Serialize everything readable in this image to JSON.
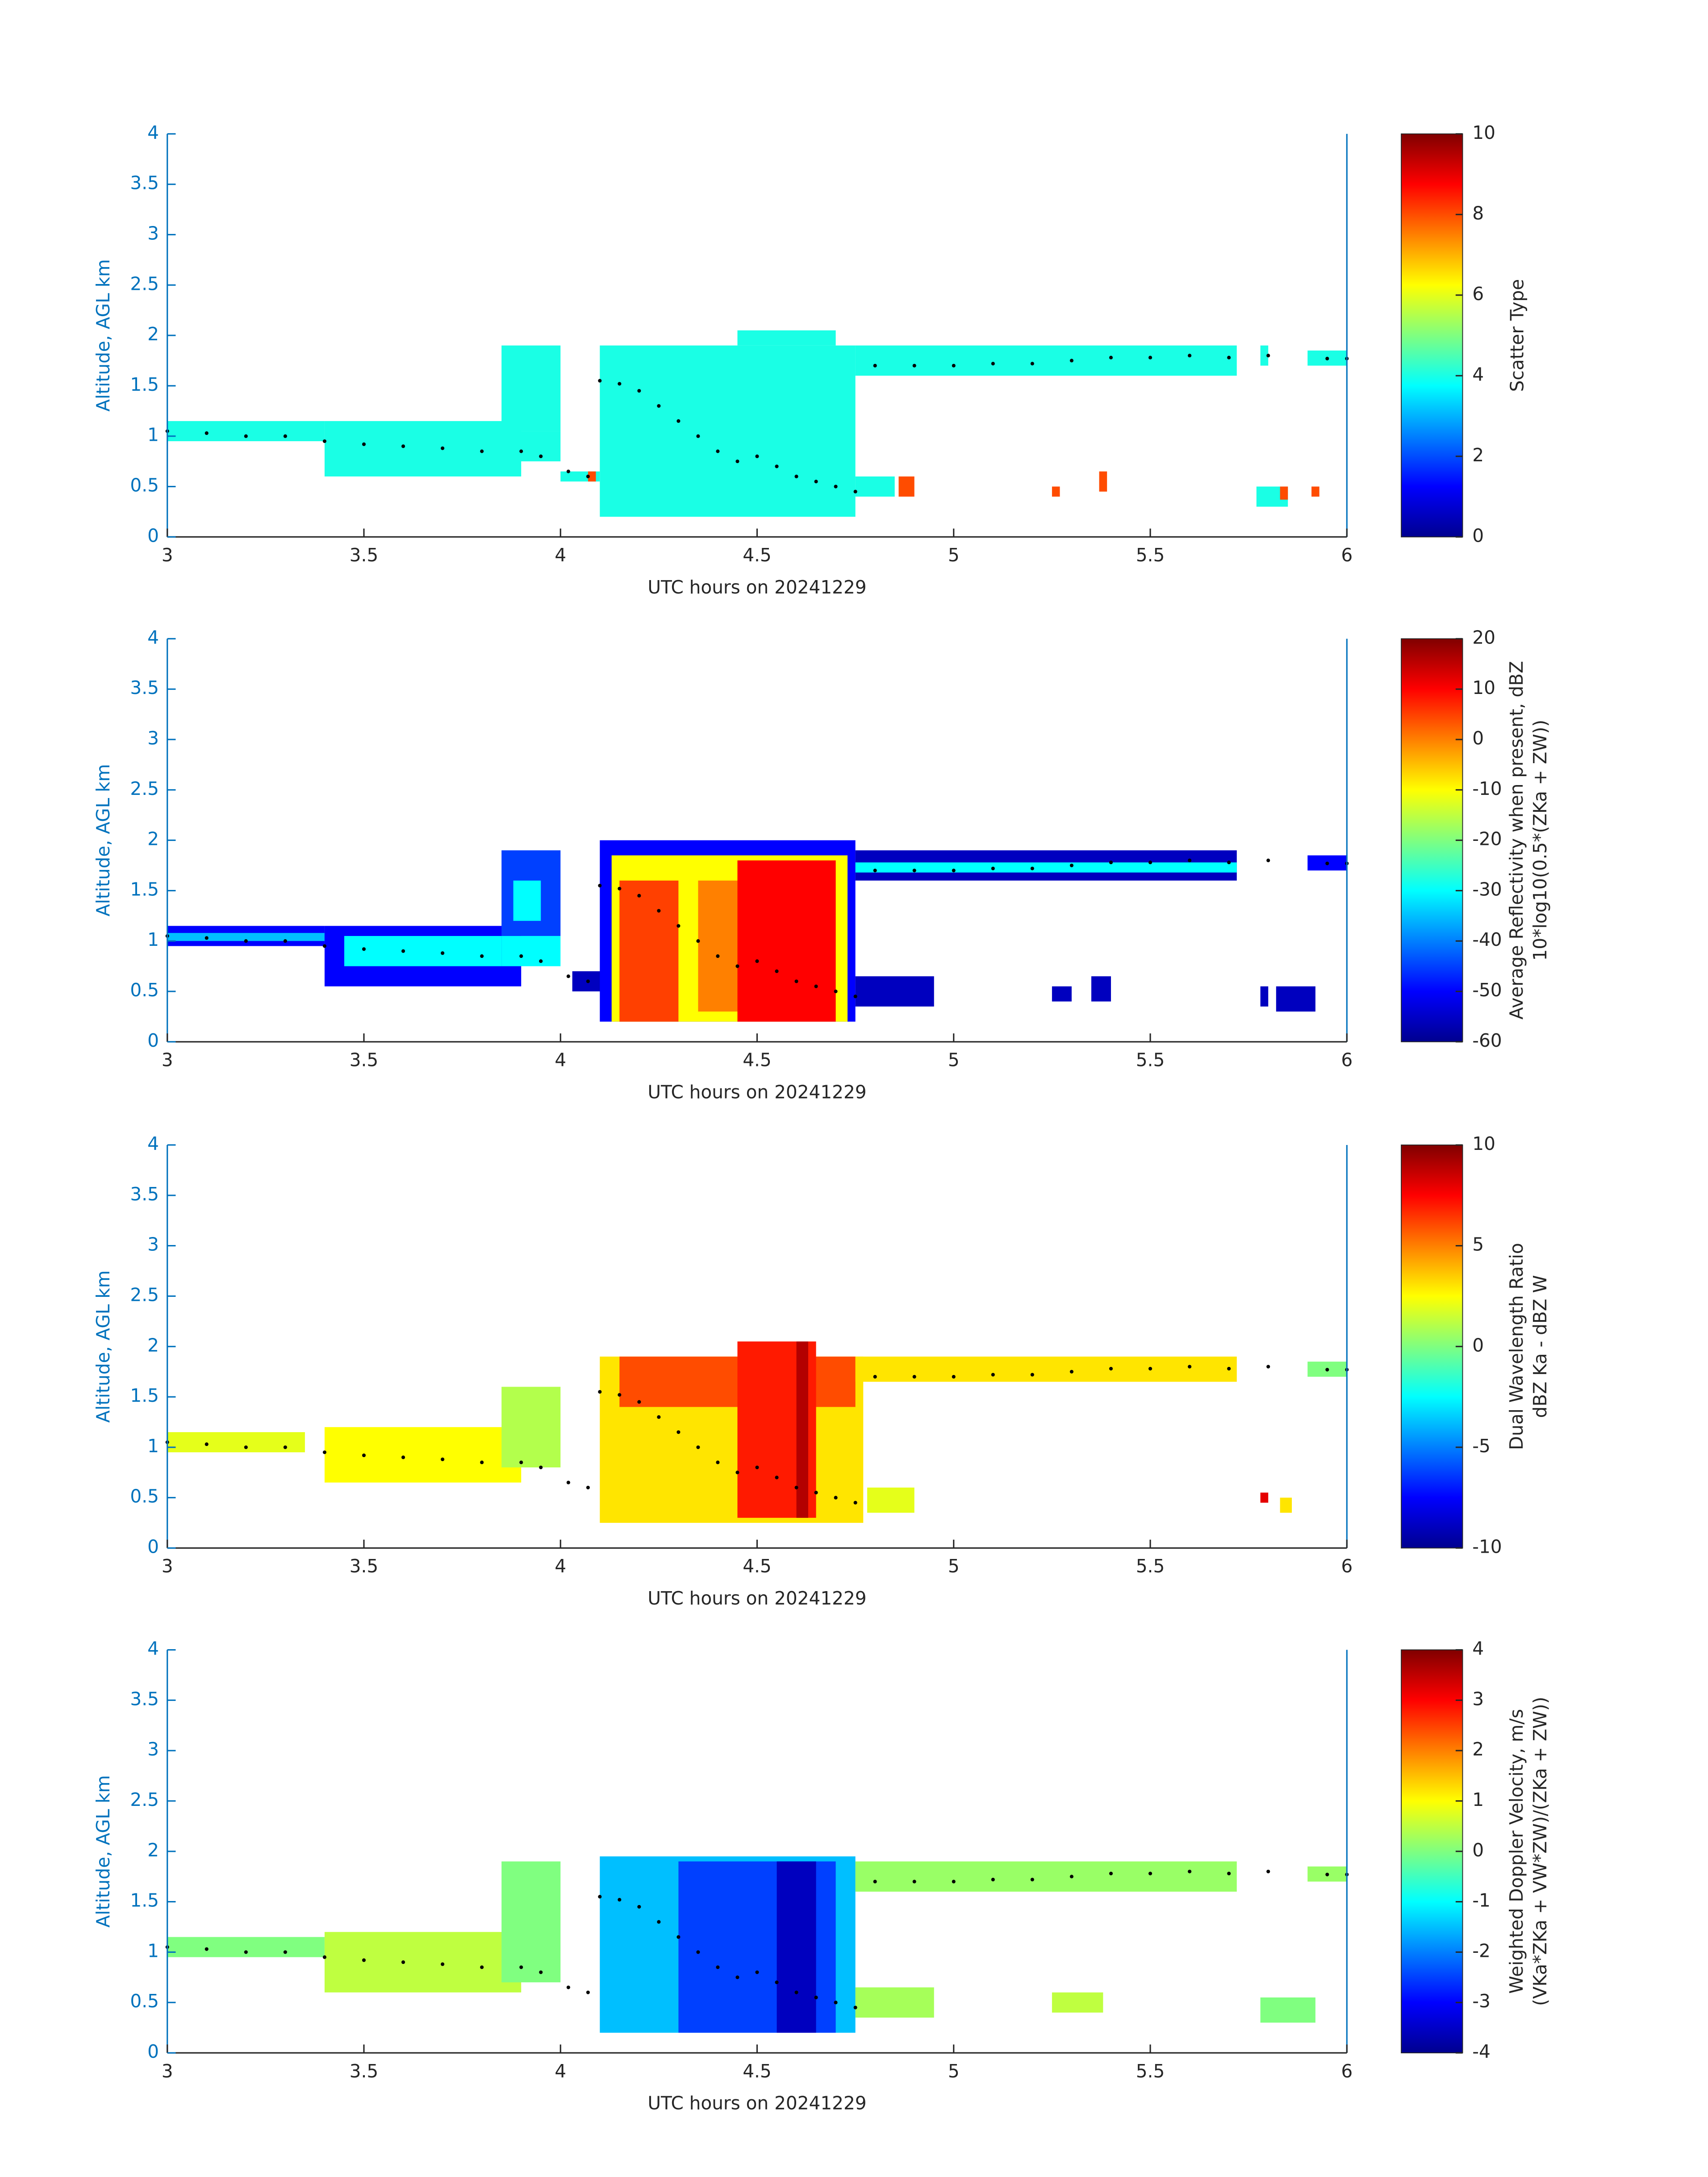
{
  "chart_data": [
    {
      "type": "heatmap",
      "xlabel": "UTC hours on 20241229",
      "ylabel": "Altitude, AGL km",
      "xlim": [
        3,
        6
      ],
      "ylim": [
        0,
        4
      ],
      "xticks": [
        3,
        3.5,
        4,
        4.5,
        5,
        5.5,
        6
      ],
      "yticks": [
        0,
        0.5,
        1,
        1.5,
        2,
        2.5,
        3,
        3.5,
        4
      ],
      "colormap": "jet",
      "colorbar": {
        "label": [
          "Scatter Type"
        ],
        "clim": [
          0,
          10
        ],
        "ticks": [
          0,
          2,
          4,
          6,
          8,
          10
        ]
      },
      "cells": [
        [
          3.0,
          3.4,
          0.95,
          1.15,
          4
        ],
        [
          3.4,
          3.9,
          0.6,
          1.15,
          4
        ],
        [
          3.85,
          4.0,
          1.05,
          1.9,
          4
        ],
        [
          3.85,
          4.0,
          0.75,
          1.05,
          4
        ],
        [
          4.0,
          4.1,
          0.55,
          0.65,
          4
        ],
        [
          4.1,
          4.75,
          0.2,
          1.9,
          4
        ],
        [
          4.45,
          4.7,
          1.9,
          2.05,
          4
        ],
        [
          4.75,
          5.72,
          1.6,
          1.9,
          4
        ],
        [
          4.75,
          4.85,
          0.4,
          0.6,
          4
        ],
        [
          5.78,
          5.8,
          1.7,
          1.9,
          4
        ],
        [
          5.9,
          6.0,
          1.7,
          1.85,
          4
        ],
        [
          5.77,
          5.85,
          0.3,
          0.5,
          4
        ],
        [
          4.07,
          4.09,
          0.55,
          0.65,
          8
        ],
        [
          4.86,
          4.9,
          0.4,
          0.6,
          8
        ],
        [
          5.25,
          5.27,
          0.4,
          0.5,
          8
        ],
        [
          5.37,
          5.39,
          0.45,
          0.65,
          8
        ],
        [
          5.83,
          5.85,
          0.37,
          0.5,
          8
        ],
        [
          5.91,
          5.93,
          0.4,
          0.5,
          8
        ]
      ],
      "series": [
        {
          "color": "#000000",
          "x": [
            3.0,
            3.1,
            3.2,
            3.3,
            3.4,
            3.5,
            3.6,
            3.7,
            3.8,
            3.9,
            3.95,
            4.02,
            4.07,
            4.1,
            4.15,
            4.2,
            4.25,
            4.3,
            4.35,
            4.4,
            4.45,
            4.5,
            4.55,
            4.6,
            4.65,
            4.7,
            4.75,
            4.8,
            4.9,
            5.0,
            5.1,
            5.2,
            5.3,
            5.4,
            5.5,
            5.6,
            5.7,
            5.8,
            5.95,
            6.0
          ],
          "y": [
            1.05,
            1.03,
            1.0,
            1.0,
            0.95,
            0.92,
            0.9,
            0.88,
            0.85,
            0.85,
            0.8,
            0.65,
            0.6,
            1.55,
            1.52,
            1.45,
            1.3,
            1.15,
            1.0,
            0.85,
            0.75,
            0.8,
            0.7,
            0.6,
            0.55,
            0.5,
            0.45,
            1.7,
            1.7,
            1.7,
            1.72,
            1.72,
            1.75,
            1.78,
            1.78,
            1.8,
            1.78,
            1.8,
            1.77,
            1.77
          ]
        }
      ]
    },
    {
      "type": "heatmap",
      "xlabel": "UTC hours on 20241229",
      "ylabel": "Altitude, AGL km",
      "xlim": [
        3,
        6
      ],
      "ylim": [
        0,
        4
      ],
      "xticks": [
        3,
        3.5,
        4,
        4.5,
        5,
        5.5,
        6
      ],
      "yticks": [
        0,
        0.5,
        1,
        1.5,
        2,
        2.5,
        3,
        3.5,
        4
      ],
      "colormap": "jet",
      "colorbar": {
        "label": [
          "Average Reflectivity when present, dBZ",
          "10*log10(0.5*(ZKa + ZW))"
        ],
        "clim": [
          -60,
          20
        ],
        "ticks": [
          -60,
          -50,
          -40,
          -30,
          -20,
          -10,
          0,
          10,
          20
        ]
      },
      "cells": [
        [
          3.0,
          3.4,
          0.95,
          1.15,
          -50
        ],
        [
          3.0,
          3.4,
          1.0,
          1.08,
          -35
        ],
        [
          3.4,
          3.9,
          0.55,
          1.15,
          -50
        ],
        [
          3.45,
          3.85,
          0.75,
          1.05,
          -30
        ],
        [
          3.85,
          4.0,
          1.05,
          1.9,
          -45
        ],
        [
          3.88,
          3.95,
          1.2,
          1.6,
          -30
        ],
        [
          3.85,
          4.0,
          0.75,
          1.05,
          -30
        ],
        [
          4.03,
          4.12,
          0.5,
          0.7,
          -55
        ],
        [
          4.1,
          4.75,
          0.2,
          2.0,
          -50
        ],
        [
          4.13,
          4.73,
          0.2,
          1.85,
          -10
        ],
        [
          4.15,
          4.3,
          0.2,
          1.6,
          5
        ],
        [
          4.35,
          4.45,
          0.3,
          1.6,
          0
        ],
        [
          4.45,
          4.7,
          0.2,
          1.8,
          10
        ],
        [
          4.75,
          5.72,
          1.6,
          1.9,
          -55
        ],
        [
          4.75,
          5.72,
          1.68,
          1.78,
          -30
        ],
        [
          4.75,
          4.95,
          0.35,
          0.65,
          -55
        ],
        [
          5.25,
          5.3,
          0.4,
          0.55,
          -55
        ],
        [
          5.35,
          5.4,
          0.4,
          0.65,
          -55
        ],
        [
          5.78,
          5.8,
          0.35,
          0.55,
          -55
        ],
        [
          5.82,
          5.92,
          0.3,
          0.55,
          -55
        ],
        [
          5.9,
          6.0,
          1.7,
          1.85,
          -50
        ]
      ],
      "series": [
        {
          "color": "#000000",
          "x": [
            3.0,
            3.1,
            3.2,
            3.3,
            3.4,
            3.5,
            3.6,
            3.7,
            3.8,
            3.9,
            3.95,
            4.02,
            4.07,
            4.1,
            4.15,
            4.2,
            4.25,
            4.3,
            4.35,
            4.4,
            4.45,
            4.5,
            4.55,
            4.6,
            4.65,
            4.7,
            4.75,
            4.8,
            4.9,
            5.0,
            5.1,
            5.2,
            5.3,
            5.4,
            5.5,
            5.6,
            5.7,
            5.8,
            5.95,
            6.0
          ],
          "y": [
            1.05,
            1.03,
            1.0,
            1.0,
            0.95,
            0.92,
            0.9,
            0.88,
            0.85,
            0.85,
            0.8,
            0.65,
            0.6,
            1.55,
            1.52,
            1.45,
            1.3,
            1.15,
            1.0,
            0.85,
            0.75,
            0.8,
            0.7,
            0.6,
            0.55,
            0.5,
            0.45,
            1.7,
            1.7,
            1.7,
            1.72,
            1.72,
            1.75,
            1.78,
            1.78,
            1.8,
            1.78,
            1.8,
            1.77,
            1.77
          ]
        }
      ]
    },
    {
      "type": "heatmap",
      "xlabel": "UTC hours on 20241229",
      "ylabel": "Altitude, AGL km",
      "xlim": [
        3,
        6
      ],
      "ylim": [
        0,
        4
      ],
      "xticks": [
        3,
        3.5,
        4,
        4.5,
        5,
        5.5,
        6
      ],
      "yticks": [
        0,
        0.5,
        1,
        1.5,
        2,
        2.5,
        3,
        3.5,
        4
      ],
      "colormap": "jet",
      "colorbar": {
        "label": [
          "Dual Wavelength Ratio",
          "dBZ Ka - dBZ W"
        ],
        "clim": [
          -10,
          10
        ],
        "ticks": [
          -10,
          -5,
          0,
          5,
          10
        ]
      },
      "cells": [
        [
          3.0,
          3.35,
          0.95,
          1.15,
          2
        ],
        [
          3.4,
          3.9,
          0.65,
          1.2,
          2.5
        ],
        [
          3.85,
          4.0,
          0.8,
          1.6,
          1
        ],
        [
          4.1,
          4.77,
          0.25,
          1.9,
          3
        ],
        [
          4.15,
          4.75,
          1.4,
          1.9,
          6
        ],
        [
          4.45,
          4.65,
          0.3,
          2.05,
          7
        ],
        [
          4.6,
          4.63,
          0.3,
          2.05,
          9
        ],
        [
          4.75,
          5.72,
          1.65,
          1.9,
          3
        ],
        [
          5.78,
          5.8,
          0.45,
          0.55,
          8
        ],
        [
          5.83,
          5.86,
          0.35,
          0.5,
          3
        ],
        [
          5.9,
          6.0,
          1.7,
          1.85,
          0
        ],
        [
          4.78,
          4.9,
          0.35,
          0.6,
          2
        ]
      ],
      "series": [
        {
          "color": "#000000",
          "x": [
            3.0,
            3.1,
            3.2,
            3.3,
            3.4,
            3.5,
            3.6,
            3.7,
            3.8,
            3.9,
            3.95,
            4.02,
            4.07,
            4.1,
            4.15,
            4.2,
            4.25,
            4.3,
            4.35,
            4.4,
            4.45,
            4.5,
            4.55,
            4.6,
            4.65,
            4.7,
            4.75,
            4.8,
            4.9,
            5.0,
            5.1,
            5.2,
            5.3,
            5.4,
            5.5,
            5.6,
            5.7,
            5.8,
            5.95,
            6.0
          ],
          "y": [
            1.05,
            1.03,
            1.0,
            1.0,
            0.95,
            0.92,
            0.9,
            0.88,
            0.85,
            0.85,
            0.8,
            0.65,
            0.6,
            1.55,
            1.52,
            1.45,
            1.3,
            1.15,
            1.0,
            0.85,
            0.75,
            0.8,
            0.7,
            0.6,
            0.55,
            0.5,
            0.45,
            1.7,
            1.7,
            1.7,
            1.72,
            1.72,
            1.75,
            1.78,
            1.78,
            1.8,
            1.78,
            1.8,
            1.77,
            1.77
          ]
        }
      ]
    },
    {
      "type": "heatmap",
      "xlabel": "UTC hours on 20241229",
      "ylabel": "Altitude, AGL km",
      "xlim": [
        3,
        6
      ],
      "ylim": [
        0,
        4
      ],
      "xticks": [
        3,
        3.5,
        4,
        4.5,
        5,
        5.5,
        6
      ],
      "yticks": [
        0,
        0.5,
        1,
        1.5,
        2,
        2.5,
        3,
        3.5,
        4
      ],
      "colormap": "jet",
      "colorbar": {
        "label": [
          "Weighted Doppler Velocity, m/s",
          "(VKa*ZKa + VW*ZW)/(ZKa + ZW))"
        ],
        "clim": [
          -4,
          4
        ],
        "ticks": [
          -4,
          -3,
          -2,
          -1,
          0,
          1,
          2,
          3,
          4
        ]
      },
      "cells": [
        [
          3.0,
          3.4,
          0.95,
          1.15,
          0
        ],
        [
          3.4,
          3.9,
          0.6,
          1.2,
          0.5
        ],
        [
          3.85,
          4.0,
          0.7,
          1.9,
          0
        ],
        [
          4.1,
          4.75,
          0.2,
          1.95,
          -1.5
        ],
        [
          4.3,
          4.7,
          0.2,
          1.9,
          -2.5
        ],
        [
          4.55,
          4.65,
          0.2,
          1.9,
          -3.5
        ],
        [
          4.75,
          5.72,
          1.6,
          1.9,
          0.2
        ],
        [
          4.75,
          4.95,
          0.35,
          0.65,
          0.3
        ],
        [
          5.25,
          5.38,
          0.4,
          0.6,
          0.5
        ],
        [
          5.78,
          5.92,
          0.3,
          0.55,
          0
        ],
        [
          5.9,
          6.0,
          1.7,
          1.85,
          0.2
        ]
      ],
      "series": [
        {
          "color": "#000000",
          "x": [
            3.0,
            3.1,
            3.2,
            3.3,
            3.4,
            3.5,
            3.6,
            3.7,
            3.8,
            3.9,
            3.95,
            4.02,
            4.07,
            4.1,
            4.15,
            4.2,
            4.25,
            4.3,
            4.35,
            4.4,
            4.45,
            4.5,
            4.55,
            4.6,
            4.65,
            4.7,
            4.75,
            4.8,
            4.9,
            5.0,
            5.1,
            5.2,
            5.3,
            5.4,
            5.5,
            5.6,
            5.7,
            5.8,
            5.95,
            6.0
          ],
          "y": [
            1.05,
            1.03,
            1.0,
            1.0,
            0.95,
            0.92,
            0.9,
            0.88,
            0.85,
            0.85,
            0.8,
            0.65,
            0.6,
            1.55,
            1.52,
            1.45,
            1.3,
            1.15,
            1.0,
            0.85,
            0.75,
            0.8,
            0.7,
            0.6,
            0.55,
            0.5,
            0.45,
            1.7,
            1.7,
            1.7,
            1.72,
            1.72,
            1.75,
            1.78,
            1.78,
            1.8,
            1.78,
            1.8,
            1.77,
            1.77
          ]
        }
      ]
    }
  ]
}
